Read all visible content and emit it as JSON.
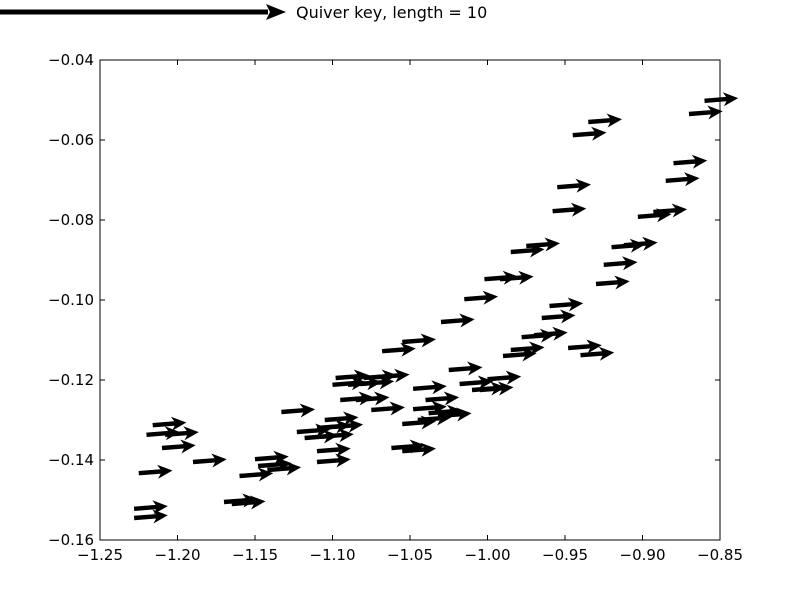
{
  "chart_data": {
    "type": "quiver",
    "title": "",
    "xlabel": "",
    "ylabel": "",
    "xlim": [
      -1.25,
      -0.85
    ],
    "ylim": [
      -0.16,
      -0.04
    ],
    "x_ticks": [
      -1.25,
      -1.2,
      -1.15,
      -1.1,
      -1.05,
      -1.0,
      -0.95,
      -0.9,
      -0.85
    ],
    "x_tick_labels": [
      "−1.25",
      "−1.20",
      "−1.15",
      "−1.10",
      "−1.05",
      "−1.00",
      "−0.95",
      "−0.90",
      "−0.85"
    ],
    "y_ticks": [
      -0.16,
      -0.14,
      -0.12,
      -0.1,
      -0.08,
      -0.06,
      -0.04
    ],
    "y_tick_labels": [
      "−0.16",
      "−0.14",
      "−0.12",
      "−0.10",
      "−0.08",
      "−0.06",
      "−0.04"
    ],
    "grid": false,
    "arrow_color": "#000000",
    "quiver_key": {
      "label": "Quiver key, length = 10",
      "length": 10
    },
    "arrow_direction": [
      10,
      0.8
    ],
    "points": [
      [
        -1.228,
        -0.1545
      ],
      [
        -1.228,
        -0.1522
      ],
      [
        -1.225,
        -0.1433
      ],
      [
        -1.22,
        -0.1337
      ],
      [
        -1.216,
        -0.1313
      ],
      [
        -1.208,
        -0.1337
      ],
      [
        -1.21,
        -0.137
      ],
      [
        -1.19,
        -0.1405
      ],
      [
        -1.17,
        -0.1505
      ],
      [
        -1.165,
        -0.151
      ],
      [
        -1.16,
        -0.144
      ],
      [
        -1.15,
        -0.1398
      ],
      [
        -1.148,
        -0.1415
      ],
      [
        -1.142,
        -0.1425
      ],
      [
        -1.133,
        -0.128
      ],
      [
        -1.123,
        -0.133
      ],
      [
        -1.118,
        -0.1345
      ],
      [
        -1.11,
        -0.132
      ],
      [
        -1.108,
        -0.1342
      ],
      [
        -1.11,
        -0.1378
      ],
      [
        -1.11,
        -0.1405
      ],
      [
        -1.105,
        -0.13
      ],
      [
        -1.102,
        -0.1318
      ],
      [
        -1.1,
        -0.1212
      ],
      [
        -1.098,
        -0.1195
      ],
      [
        -1.095,
        -0.125
      ],
      [
        -1.09,
        -0.1212
      ],
      [
        -1.085,
        -0.125
      ],
      [
        -1.082,
        -0.121
      ],
      [
        -1.08,
        -0.1195
      ],
      [
        -1.072,
        -0.1193
      ],
      [
        -1.075,
        -0.1275
      ],
      [
        -1.068,
        -0.1128
      ],
      [
        -1.055,
        -0.1105
      ],
      [
        -1.062,
        -0.137
      ],
      [
        -1.055,
        -0.1378
      ],
      [
        -1.055,
        -0.131
      ],
      [
        -1.045,
        -0.13
      ],
      [
        -1.048,
        -0.1222
      ],
      [
        -1.048,
        -0.1273
      ],
      [
        -1.04,
        -0.125
      ],
      [
        -1.038,
        -0.1283
      ],
      [
        -1.032,
        -0.129
      ],
      [
        -1.03,
        -0.1055
      ],
      [
        -1.025,
        -0.1175
      ],
      [
        -1.018,
        -0.121
      ],
      [
        -1.015,
        -0.0998
      ],
      [
        -1.01,
        -0.1225
      ],
      [
        -1.005,
        -0.1225
      ],
      [
        -1.0,
        -0.1198
      ],
      [
        -1.002,
        -0.0948
      ],
      [
        -0.992,
        -0.0948
      ],
      [
        -0.99,
        -0.114
      ],
      [
        -0.985,
        -0.1125
      ],
      [
        -0.985,
        -0.088
      ],
      [
        -0.975,
        -0.0865
      ],
      [
        -0.978,
        -0.1093
      ],
      [
        -0.97,
        -0.1088
      ],
      [
        -0.965,
        -0.1045
      ],
      [
        -0.96,
        -0.1015
      ],
      [
        -0.958,
        -0.0778
      ],
      [
        -0.955,
        -0.0718
      ],
      [
        -0.948,
        -0.112
      ],
      [
        -0.94,
        -0.1138
      ],
      [
        -0.945,
        -0.0588
      ],
      [
        -0.935,
        -0.0555
      ],
      [
        -0.93,
        -0.096
      ],
      [
        -0.925,
        -0.0912
      ],
      [
        -0.92,
        -0.0868
      ],
      [
        -0.912,
        -0.0863
      ],
      [
        -0.903,
        -0.0792
      ],
      [
        -0.893,
        -0.078
      ],
      [
        -0.885,
        -0.0702
      ],
      [
        -0.88,
        -0.0658
      ],
      [
        -0.87,
        -0.0535
      ],
      [
        -0.86,
        -0.0502
      ]
    ]
  }
}
